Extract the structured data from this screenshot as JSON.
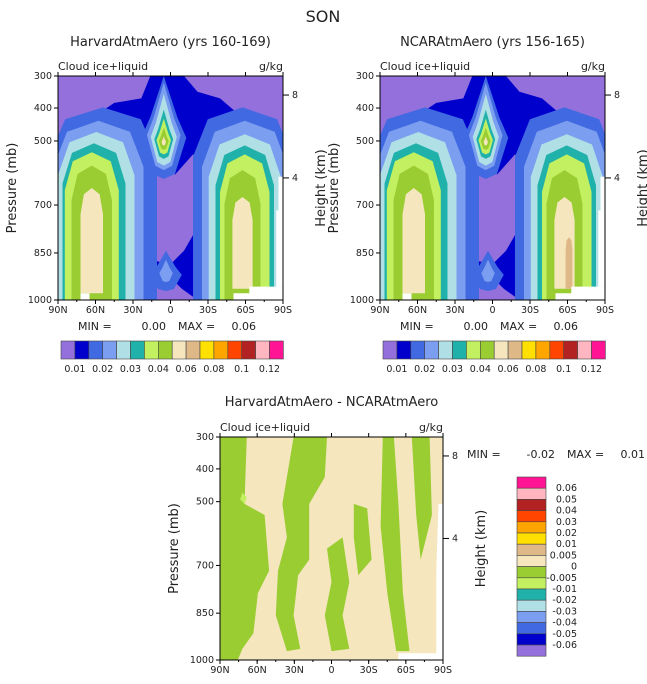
{
  "chart_data": {
    "type": "contour",
    "title": "SON",
    "colors": [
      "#9370DB",
      "#0000CD",
      "#4169E1",
      "#7B9EF0",
      "#B0E0E6",
      "#20B2AA",
      "#C2F060",
      "#9ACD32",
      "#F5E6BE",
      "#DEB887",
      "#FFE000",
      "#FFA500",
      "#FF4500",
      "#B22222",
      "#FFB6C1",
      "#FF1493"
    ],
    "x_ticks": [
      "90N",
      "60N",
      "30N",
      "0",
      "30S",
      "60S",
      "90S"
    ],
    "pressure_ticks": [
      "300",
      "400",
      "500",
      "700",
      "850",
      "1000"
    ],
    "height_ticks": [
      "8",
      "4"
    ],
    "ylabel": "Pressure (mb)",
    "ylabel_right": "Height (km)",
    "panels": [
      {
        "title": "HarvardAtmAero (yrs 160-169)",
        "left_label": "Cloud ice+liquid",
        "right_label": "g/kg",
        "min_label": "MIN =",
        "min": "0.00",
        "max_label": "MAX =",
        "max": "0.06"
      },
      {
        "title": "NCARAtmAero (yrs 156-165)",
        "left_label": "Cloud ice+liquid",
        "right_label": "g/kg",
        "min_label": "MIN =",
        "min": "0.00",
        "max_label": "MAX =",
        "max": "0.06"
      },
      {
        "title": "HarvardAtmAero - NCARAtmAero",
        "left_label": "Cloud ice+liquid",
        "right_label": "g/kg",
        "min_label": "MIN =",
        "min": "-0.02",
        "max_label": "MAX =",
        "max": "0.01"
      }
    ],
    "colorbar_levels": [
      "0.01",
      "0.02",
      "0.03",
      "0.04",
      "0.06",
      "0.08",
      "0.1",
      "0.12"
    ],
    "diff_colorbar_levels": [
      "0.06",
      "0.05",
      "0.04",
      "0.03",
      "0.02",
      "0.01",
      "0.005",
      "0",
      "-0.005",
      "-0.01",
      "-0.02",
      "-0.03",
      "-0.04",
      "-0.05",
      "-0.06"
    ]
  }
}
